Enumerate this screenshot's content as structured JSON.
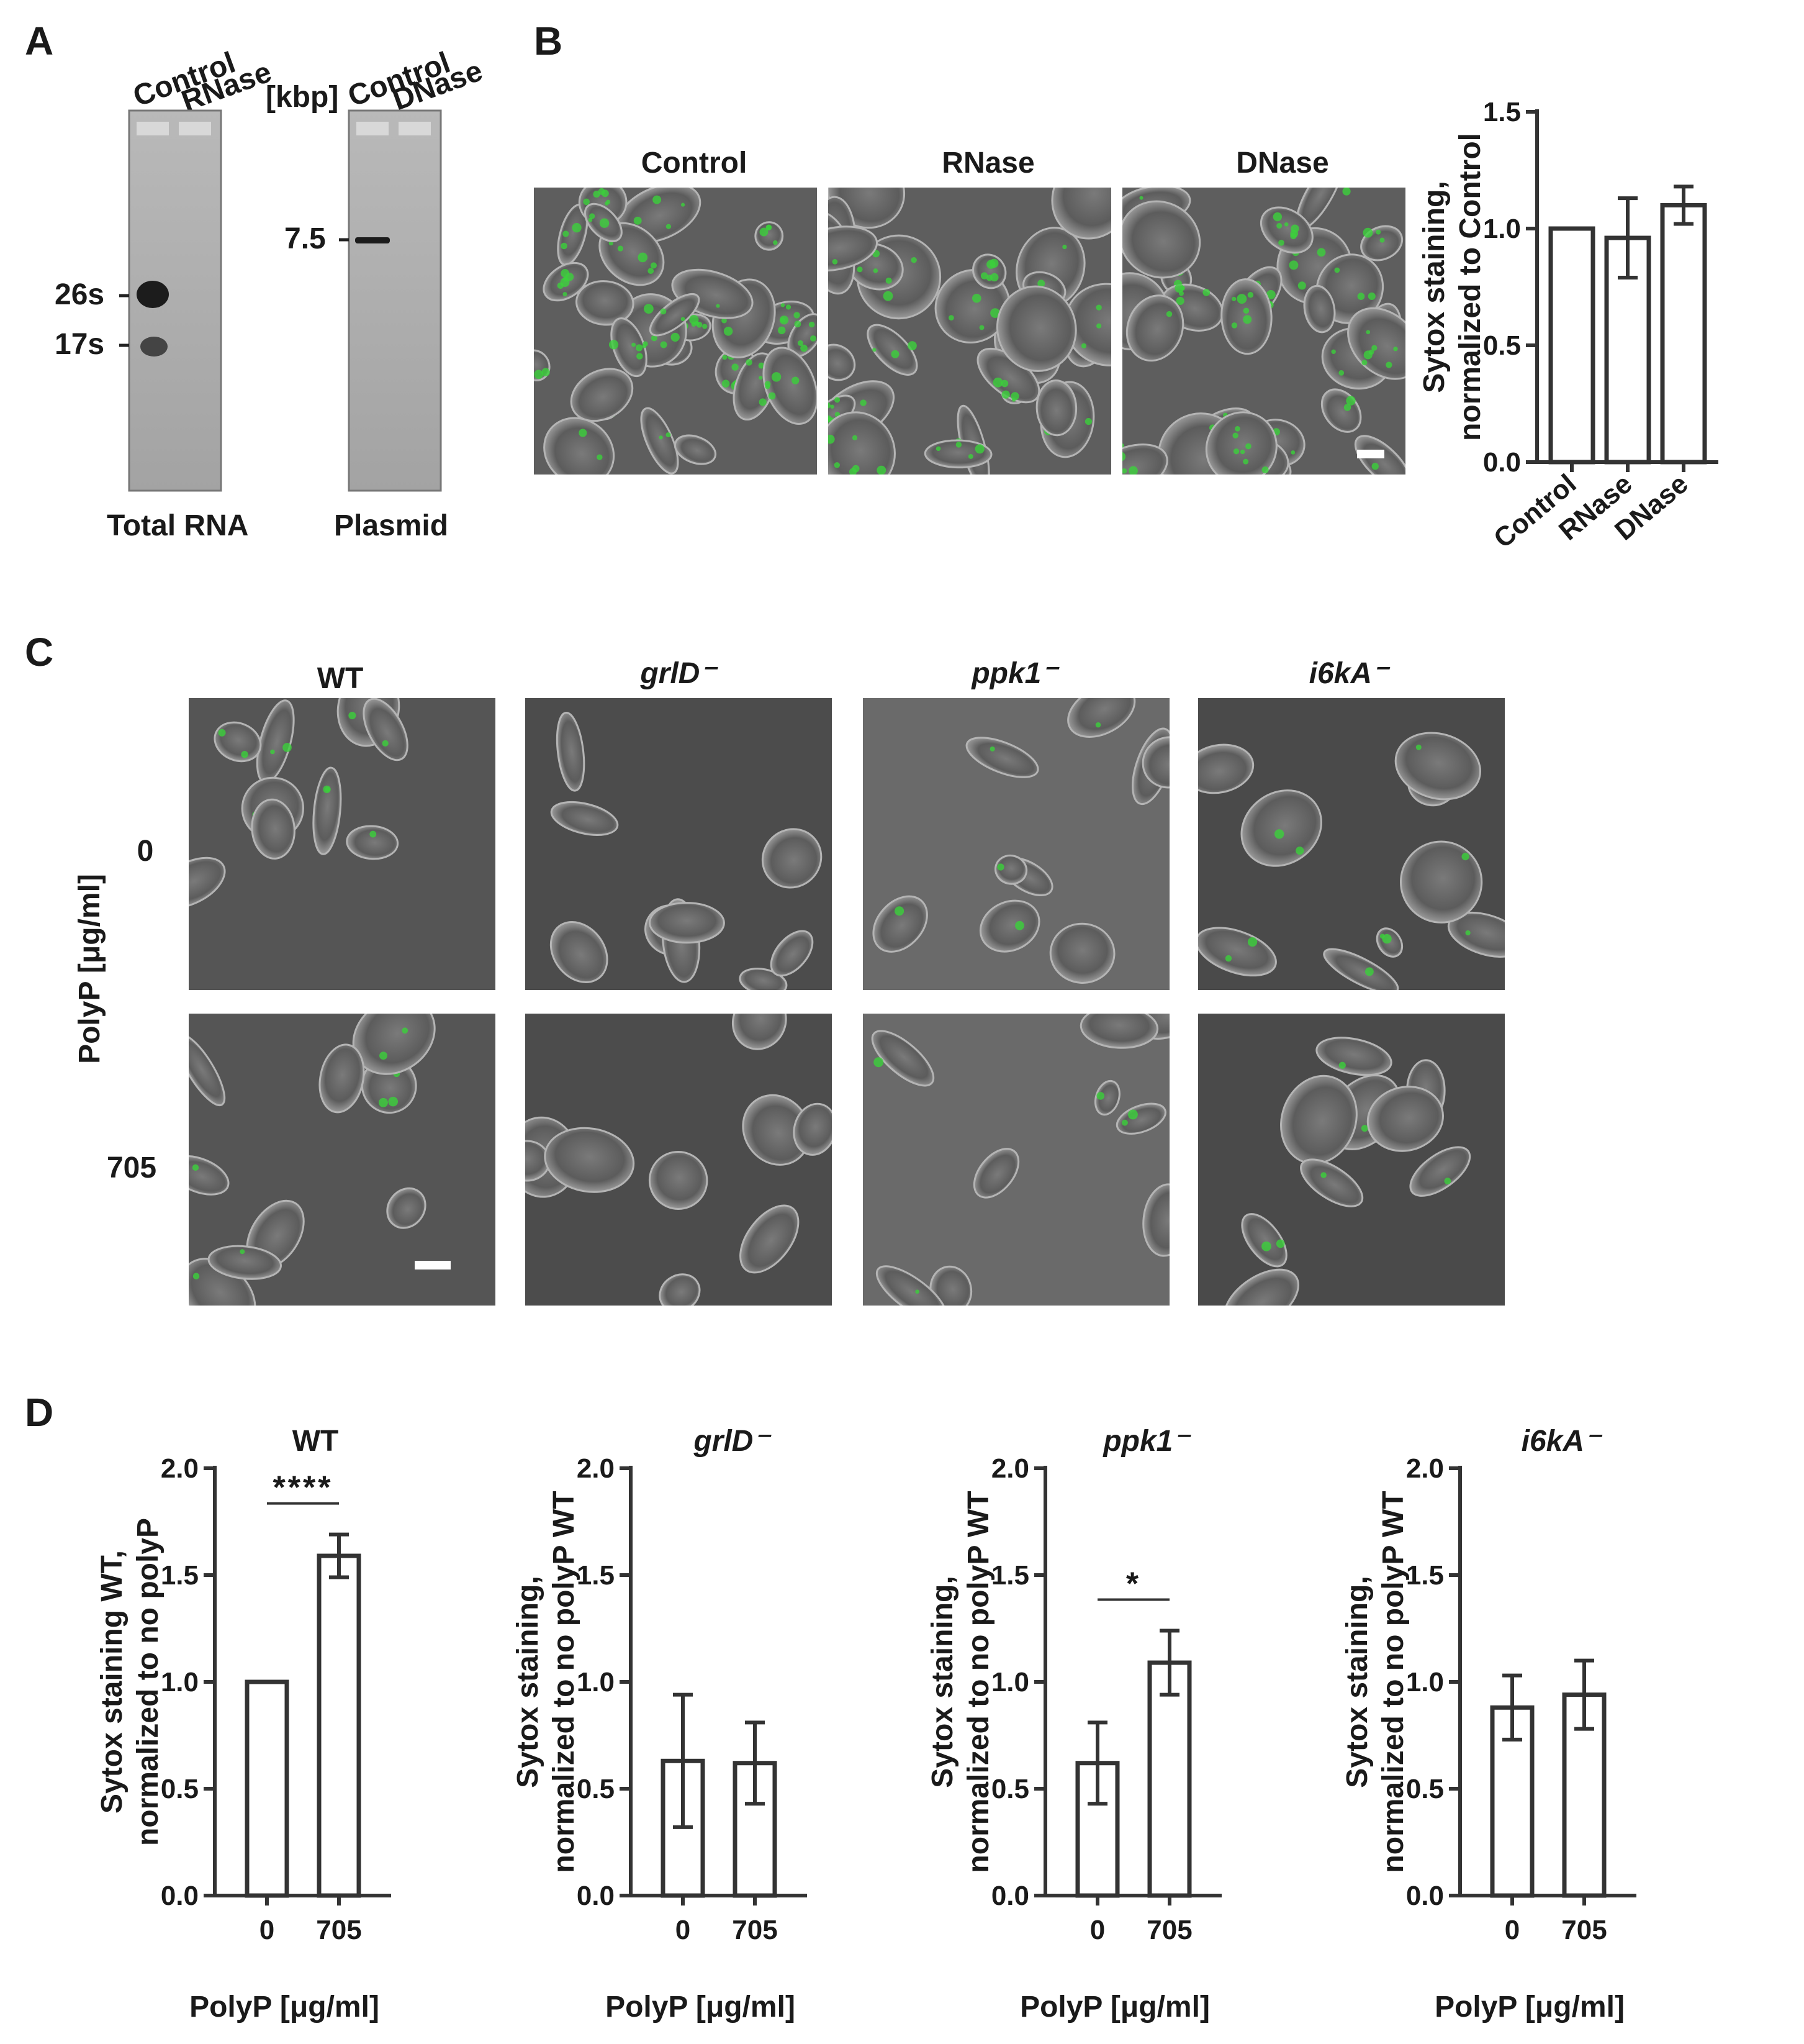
{
  "panels": {
    "A": {
      "letter": "A",
      "gel1": {
        "lane_labels": [
          "Control",
          "RNase"
        ],
        "markers": [
          "26s",
          "17s"
        ],
        "caption": "Total RNA"
      },
      "gel2": {
        "unit": "[kbp]",
        "lane_labels": [
          "Control",
          "DNase"
        ],
        "markers": [
          "7.5"
        ],
        "caption": "Plasmid"
      }
    },
    "B": {
      "letter": "B",
      "image_titles": [
        "Control",
        "RNase",
        "DNase"
      ]
    },
    "C": {
      "letter": "C",
      "column_titles": [
        "WT",
        "grlD⁻",
        "ppk1⁻",
        "i6kA⁻"
      ],
      "row_axis_label": "PolyP [μg/ml]",
      "row_labels": [
        "0",
        "705"
      ]
    },
    "D": {
      "letter": "D"
    }
  },
  "chart_data": [
    {
      "id": "B",
      "type": "bar",
      "title": "",
      "categories": [
        "Control",
        "RNase",
        "DNase"
      ],
      "values": [
        1.0,
        0.96,
        1.1
      ],
      "errors": [
        0,
        0.17,
        0.08
      ],
      "xlabel": "",
      "ylabel": "Sytox staining, normalized to Control",
      "ylim": [
        0,
        1.5
      ],
      "yticks": [
        "0.0",
        "0.5",
        "1.0",
        "1.5"
      ],
      "significance": ""
    },
    {
      "id": "D-WT",
      "type": "bar",
      "title": "WT",
      "categories": [
        "0",
        "705"
      ],
      "values": [
        1.0,
        1.59
      ],
      "errors": [
        0,
        0.1
      ],
      "xlabel": "PolyP [μg/ml]",
      "ylabel": "Sytox staining WT, normalized to no polyP",
      "ylim": [
        0,
        2.0
      ],
      "yticks": [
        "0.0",
        "0.5",
        "1.0",
        "1.5",
        "2.0"
      ],
      "significance": "****"
    },
    {
      "id": "D-grlD",
      "type": "bar",
      "title": "grlD⁻",
      "categories": [
        "0",
        "705"
      ],
      "values": [
        0.63,
        0.62
      ],
      "errors": [
        0.31,
        0.19
      ],
      "xlabel": "PolyP [μg/ml]",
      "ylabel": "Sytox staining, normalized to no polyP WT",
      "ylim": [
        0,
        2.0
      ],
      "yticks": [
        "0.0",
        "0.5",
        "1.0",
        "1.5",
        "2.0"
      ],
      "significance": ""
    },
    {
      "id": "D-ppk1",
      "type": "bar",
      "title": "ppk1⁻",
      "categories": [
        "0",
        "705"
      ],
      "values": [
        0.62,
        1.09
      ],
      "errors": [
        0.19,
        0.15
      ],
      "xlabel": "PolyP [μg/ml]",
      "ylabel": "Sytox staining, normalized to no polyP WT",
      "ylim": [
        0,
        2.0
      ],
      "yticks": [
        "0.0",
        "0.5",
        "1.0",
        "1.5",
        "2.0"
      ],
      "significance": "*"
    },
    {
      "id": "D-i6kA",
      "type": "bar",
      "title": "i6kA⁻",
      "categories": [
        "0",
        "705"
      ],
      "values": [
        0.88,
        0.94
      ],
      "errors": [
        0.15,
        0.16
      ],
      "xlabel": "PolyP [μg/ml]",
      "ylabel": "Sytox staining, normalized to no polyP WT",
      "ylim": [
        0,
        2.0
      ],
      "yticks": [
        "0.0",
        "0.5",
        "1.0",
        "1.5",
        "2.0"
      ],
      "significance": ""
    }
  ]
}
